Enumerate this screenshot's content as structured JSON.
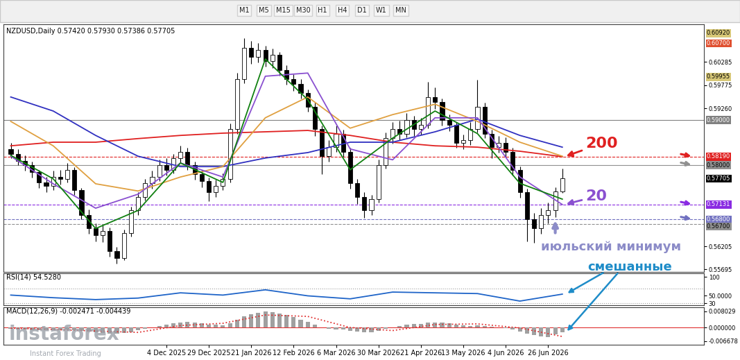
{
  "chart_data": [
    {
      "type": "candlestick",
      "title": "NZDUSD,Daily 0.57420 0.57930 0.57386 0.57705",
      "tick_labels": "y",
      "color": "#000000",
      "xlim": [
        -1,
        98
      ],
      "ylim": [
        0.5564,
        0.6112
      ],
      "yticks": [
        {
          "value": 0.60285,
          "label": "0.60285"
        },
        {
          "value": 0.59775,
          "label": "0.59775"
        },
        {
          "value": 0.5926,
          "label": "0.59260"
        },
        {
          "value": 0.56205,
          "label": "0.56205"
        },
        {
          "value": 0.55695,
          "label": "0.55695"
        }
      ],
      "open": [
        0.5835,
        0.5825,
        0.581,
        0.58,
        0.5785,
        0.5762,
        0.5755,
        0.5775,
        0.577,
        0.579,
        0.5745,
        0.569,
        0.566,
        0.5645,
        0.5655,
        0.561,
        0.5595,
        0.565,
        0.57,
        0.573,
        0.576,
        0.5775,
        0.58,
        0.579,
        0.5815,
        0.583,
        0.58,
        0.578,
        0.5765,
        0.574,
        0.5755,
        0.577,
        0.588,
        0.599,
        0.606,
        0.604,
        0.6055,
        0.603,
        0.6045,
        0.601,
        0.599,
        0.598,
        0.596,
        0.593,
        0.588,
        0.582,
        0.584,
        0.587,
        0.583,
        0.576,
        0.573,
        0.57,
        0.5725,
        0.58,
        0.586,
        0.588,
        0.587,
        0.59,
        0.588,
        0.589,
        0.595,
        0.594,
        0.59,
        0.589,
        0.585,
        0.5855,
        0.588,
        0.593,
        0.587,
        0.584,
        0.585,
        0.583,
        0.579,
        0.574,
        0.568,
        0.566,
        0.569,
        0.57,
        0.5742
      ],
      "high": [
        0.585,
        0.5835,
        0.5822,
        0.5808,
        0.579,
        0.5775,
        0.5788,
        0.579,
        0.5805,
        0.5795,
        0.575,
        0.5702,
        0.5672,
        0.5668,
        0.5662,
        0.562,
        0.5658,
        0.5708,
        0.574,
        0.577,
        0.5788,
        0.5812,
        0.5815,
        0.5825,
        0.5843,
        0.5838,
        0.5808,
        0.579,
        0.5772,
        0.5768,
        0.5782,
        0.5892,
        0.6005,
        0.6081,
        0.6075,
        0.607,
        0.6064,
        0.6058,
        0.605,
        0.6022,
        0.6002,
        0.599,
        0.5968,
        0.5938,
        0.5888,
        0.5855,
        0.5888,
        0.5878,
        0.5838,
        0.577,
        0.574,
        0.5735,
        0.5812,
        0.5872,
        0.5895,
        0.5898,
        0.5915,
        0.591,
        0.5905,
        0.5985,
        0.5972,
        0.5948,
        0.5912,
        0.5895,
        0.5868,
        0.5895,
        0.5989,
        0.5938,
        0.5878,
        0.5865,
        0.5862,
        0.5838,
        0.5798,
        0.5748,
        0.5695,
        0.5705,
        0.5718,
        0.5752,
        0.5793
      ],
      "low": [
        0.5815,
        0.58,
        0.5788,
        0.5772,
        0.575,
        0.574,
        0.5745,
        0.5758,
        0.5762,
        0.5735,
        0.568,
        0.5648,
        0.5632,
        0.563,
        0.5598,
        0.5582,
        0.559,
        0.5642,
        0.569,
        0.5722,
        0.5748,
        0.5765,
        0.5778,
        0.5782,
        0.5805,
        0.579,
        0.5768,
        0.5752,
        0.5721,
        0.573,
        0.5745,
        0.5762,
        0.587,
        0.5982,
        0.6025,
        0.6028,
        0.6018,
        0.6015,
        0.5998,
        0.5978,
        0.5965,
        0.5948,
        0.5918,
        0.5865,
        0.578,
        0.5808,
        0.583,
        0.5818,
        0.5748,
        0.5715,
        0.5683,
        0.569,
        0.5718,
        0.5792,
        0.5848,
        0.5855,
        0.5862,
        0.5865,
        0.5868,
        0.5882,
        0.5925,
        0.5888,
        0.5875,
        0.5838,
        0.5835,
        0.5845,
        0.5872,
        0.586,
        0.5815,
        0.5828,
        0.5818,
        0.5778,
        0.5728,
        0.5632,
        0.5628,
        0.5648,
        0.5672,
        0.5685,
        0.57386
      ],
      "close": [
        0.5825,
        0.581,
        0.58,
        0.5785,
        0.5762,
        0.5755,
        0.5775,
        0.577,
        0.579,
        0.5745,
        0.569,
        0.566,
        0.5645,
        0.5655,
        0.561,
        0.5595,
        0.565,
        0.57,
        0.573,
        0.576,
        0.5775,
        0.58,
        0.579,
        0.5815,
        0.583,
        0.58,
        0.578,
        0.5765,
        0.574,
        0.5755,
        0.577,
        0.588,
        0.599,
        0.606,
        0.604,
        0.6055,
        0.603,
        0.6045,
        0.601,
        0.599,
        0.598,
        0.596,
        0.593,
        0.588,
        0.582,
        0.584,
        0.587,
        0.583,
        0.576,
        0.573,
        0.57,
        0.5725,
        0.58,
        0.586,
        0.588,
        0.587,
        0.59,
        0.588,
        0.589,
        0.595,
        0.594,
        0.59,
        0.589,
        0.585,
        0.5855,
        0.588,
        0.593,
        0.587,
        0.584,
        0.585,
        0.583,
        0.579,
        0.574,
        0.568,
        0.566,
        0.569,
        0.57,
        0.5742,
        0.57705
      ],
      "series": [
        {
          "name": "200",
          "type": "line",
          "color": "#e02020",
          "x": [
            0,
            6,
            12,
            18,
            24,
            30,
            36,
            42,
            48,
            54,
            60,
            66,
            72,
            78
          ],
          "values": [
            0.5843,
            0.5851,
            0.5851,
            0.5859,
            0.5866,
            0.5871,
            0.5874,
            0.5877,
            0.5866,
            0.5851,
            0.5843,
            0.584,
            0.5831,
            0.5819
          ]
        },
        {
          "type": "line",
          "color": "#3030c0",
          "x": [
            0,
            6,
            12,
            18,
            24,
            30,
            36,
            42,
            48,
            54,
            60,
            66,
            72,
            78
          ],
          "values": [
            0.5951,
            0.592,
            0.5866,
            0.582,
            0.5797,
            0.5797,
            0.5816,
            0.5828,
            0.5851,
            0.5851,
            0.5874,
            0.5902,
            0.5866,
            0.584
          ]
        },
        {
          "type": "line",
          "color": "#e0a040",
          "x": [
            0,
            6,
            12,
            18,
            24,
            30,
            36,
            42,
            48,
            54,
            60,
            66,
            72,
            78
          ],
          "values": [
            0.5897,
            0.5843,
            0.5759,
            0.5743,
            0.5774,
            0.5797,
            0.5905,
            0.5951,
            0.5882,
            0.5912,
            0.5935,
            0.5897,
            0.5851,
            0.582
          ]
        },
        {
          "name": "20",
          "type": "line",
          "color": "#8a50d0",
          "x": [
            0,
            6,
            12,
            18,
            24,
            30,
            36,
            42,
            48,
            54,
            60,
            66,
            72,
            78
          ],
          "values": [
            0.582,
            0.5759,
            0.5705,
            0.5736,
            0.5805,
            0.5774,
            0.5997,
            0.6004,
            0.5836,
            0.5812,
            0.5905,
            0.5905,
            0.5774,
            0.57131
          ]
        },
        {
          "type": "line",
          "color": "#108010",
          "x": [
            0,
            6,
            12,
            18,
            24,
            30,
            36,
            42,
            48,
            54,
            60,
            66,
            72,
            78
          ],
          "values": [
            0.5822,
            0.577,
            0.566,
            0.57,
            0.5805,
            0.5762,
            0.6035,
            0.5945,
            0.579,
            0.586,
            0.592,
            0.587,
            0.576,
            0.5725
          ]
        }
      ],
      "levels": [
        {
          "value": 0.6092,
          "label": "0.60920",
          "color": "#d8c878",
          "line_style": "none"
        },
        {
          "value": 0.607,
          "label": "0.60700",
          "color": "#e05030",
          "line_style": "none"
        },
        {
          "value": 0.59955,
          "label": "0.59955",
          "color": "#d8c878",
          "line_style": "none"
        },
        {
          "value": 0.59,
          "label": "0.59000",
          "color": "#808080",
          "line_style": "solid"
        },
        {
          "value": 0.5819,
          "label": "0.58190",
          "color": "#e02020",
          "line_style": "dashed",
          "marker": "arrow"
        },
        {
          "value": 0.58,
          "label": "0.58000",
          "color": "#909090",
          "line_style": "solid",
          "marker": "arrow"
        },
        {
          "value": 0.57705,
          "label": "0.57705",
          "color": "#000000",
          "line_style": "none"
        },
        {
          "value": 0.57131,
          "label": "0.57131",
          "color": "#8a2be2",
          "line_style": "dashed",
          "marker": "arrow"
        },
        {
          "value": 0.568,
          "label": "0.56800",
          "color": "#7070c0",
          "line_style": "dashed",
          "marker": "arrow"
        },
        {
          "value": 0.567,
          "label": "0.56700",
          "color": "#909090",
          "line_style": "dashed"
        }
      ],
      "annotations": [
        {
          "text": "июльский минимум",
          "color": "#8c8cc8"
        },
        {
          "text": "смешанные",
          "color": "#1e8cc8"
        }
      ]
    },
    {
      "type": "line",
      "title": "RSI(14) 54.5280",
      "tick_labels": "y",
      "xlim": [
        -1,
        98
      ],
      "ylim": [
        25,
        110
      ],
      "yticks": [
        100,
        {
          "value": 50,
          "label": "50.0000"
        },
        30
      ],
      "series": [
        {
          "type": "line",
          "color": "#1e64c8",
          "x": [
            0,
            6,
            12,
            18,
            24,
            30,
            36,
            42,
            48,
            54,
            60,
            66,
            72,
            78
          ],
          "values": [
            52,
            45,
            40,
            44,
            58,
            52,
            66,
            50,
            42,
            60,
            58,
            56,
            36,
            54.528
          ]
        }
      ],
      "levels": [
        {
          "value": 70,
          "color": "#a0a0a0",
          "line_style": "dotted"
        },
        {
          "value": 30,
          "color": "#a0a0a0",
          "line_style": "dotted"
        }
      ]
    },
    {
      "type": "bar",
      "title": "MACD(12,26,9) -0.002471 -0.004439",
      "color": "#a0a0a0",
      "xlim": [
        -1,
        98
      ],
      "ylim": [
        -0.0085,
        0.01
      ],
      "yticks": [
        {
          "value": 0.008029,
          "label": "0.008029"
        },
        {
          "value": 0,
          "label": "0.000000"
        },
        {
          "value": -0.006678,
          "label": "-0.006678"
        }
      ],
      "categories": [
        null,
        null,
        null,
        null,
        null,
        null,
        null,
        null,
        null,
        null,
        null,
        null,
        null,
        null,
        null,
        null,
        null,
        null,
        null,
        null,
        null,
        null,
        "4 Dec 2025",
        null,
        null,
        null,
        null,
        null,
        "29 Dec 2025",
        null,
        null,
        null,
        null,
        null,
        "21 Jan 2026",
        null,
        null,
        null,
        null,
        null,
        "12 Feb 2026",
        null,
        null,
        null,
        null,
        null,
        "6 Mar 2026",
        null,
        null,
        null,
        null,
        null,
        "30 Mar 2026",
        null,
        null,
        null,
        null,
        null,
        "21 Apr 2026",
        null,
        null,
        null,
        null,
        null,
        "13 May 2026",
        null,
        null,
        null,
        null,
        null,
        "4 Jun 2026",
        null,
        null,
        null,
        null,
        null,
        "26 Jun 2026",
        null,
        null
      ],
      "values": [
        -0.0005,
        -0.0008,
        -0.001,
        -0.0012,
        -0.0013,
        -0.0014,
        -0.0013,
        -0.0012,
        -0.001,
        -0.0012,
        -0.0016,
        -0.002,
        -0.0024,
        -0.0026,
        -0.0029,
        -0.0031,
        -0.0028,
        -0.0022,
        -0.0014,
        -0.0006,
        0.0002,
        0.0009,
        0.0015,
        0.0021,
        0.0026,
        0.0027,
        0.0025,
        0.0021,
        0.0016,
        0.0013,
        0.0012,
        0.0022,
        0.0038,
        0.0054,
        0.0066,
        0.0074,
        0.0078,
        0.0076,
        0.007,
        0.0062,
        0.0052,
        0.004,
        0.0028,
        0.0015,
        0.0002,
        -0.0006,
        -0.0009,
        -0.001,
        -0.0015,
        -0.002,
        -0.0024,
        -0.0023,
        -0.0016,
        -0.0007,
        0.0002,
        0.0008,
        0.0014,
        0.0017,
        0.0019,
        0.0024,
        0.0026,
        0.0024,
        0.002,
        0.0014,
        0.001,
        0.0009,
        0.0012,
        0.0009,
        0.0004,
        0.0,
        -0.0004,
        -0.001,
        -0.0019,
        -0.0029,
        -0.0038,
        -0.0043,
        -0.0046,
        -0.0034,
        -0.002471
      ],
      "series": [
        {
          "type": "line",
          "color": "#e03030",
          "line_style": "dotted",
          "x": [
            0,
            6,
            12,
            18,
            24,
            30,
            36,
            42,
            48,
            54,
            60,
            66,
            72,
            78
          ],
          "values": [
            -0.0003,
            -0.001,
            -0.0017,
            -0.0024,
            0.001,
            0.0021,
            0.0062,
            0.0055,
            0.0,
            -0.0015,
            0.0015,
            0.0018,
            -0.0002,
            -0.004439
          ]
        }
      ],
      "levels": [
        {
          "value": 0,
          "color": "#e03030",
          "line_style": "solid"
        }
      ]
    }
  ],
  "toolbar": [
    "M1",
    "M5",
    "M15",
    "M30",
    "H1",
    "H4",
    "D1",
    "W1",
    "MN"
  ],
  "watermark": [
    "instaforex",
    "Instant Forex Trading"
  ]
}
